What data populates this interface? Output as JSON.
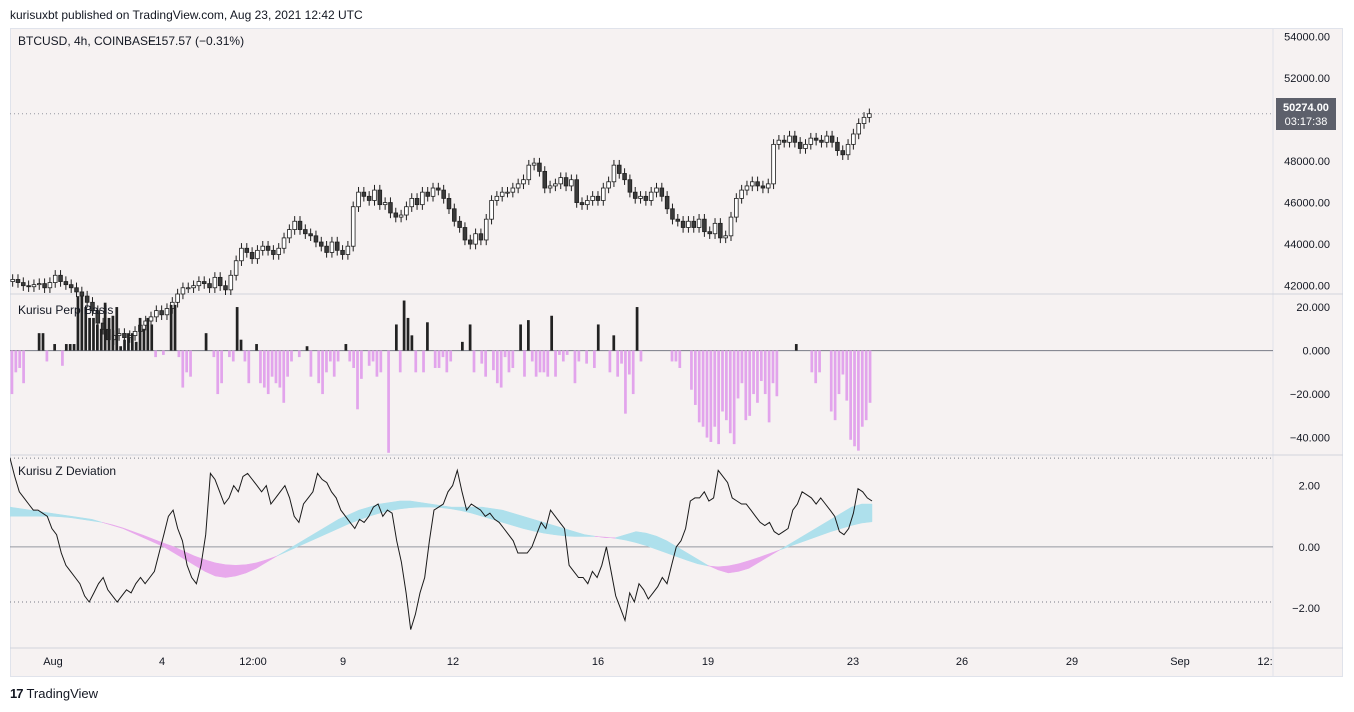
{
  "header": {
    "publish_line": "kurisuxbt published on TradingView.com, Aug 23, 2021 12:42 UTC"
  },
  "footer": {
    "logo_glyph": "17",
    "brand": "TradingView"
  },
  "colors": {
    "background": "#f6f2f2",
    "candle_up_body": "#ffffff",
    "candle_down_body": "#3a3a3a",
    "candle_wick": "#1f1f1f",
    "basis_positive": "#222222",
    "basis_negative": "#e2a4ec",
    "zdev_line": "#1a1a1a",
    "cloud_pink": "#e8a9ec",
    "cloud_blue": "#aee0ec",
    "price_tag_bg": "#5d606b"
  },
  "chart_data": [
    {
      "type": "candlestick",
      "title": "BTCUSD, 4h, COINBASE",
      "change_text": "−157.57 (−0.31%)",
      "y_ticks": [
        "54000.00",
        "52000.00",
        "48000.00",
        "46000.00",
        "44000.00",
        "42000.00"
      ],
      "ylim": [
        41600,
        54400
      ],
      "last_price": "50274.00",
      "countdown": "03:17:38",
      "closes": [
        42300,
        42150,
        42000,
        41950,
        42050,
        42100,
        41900,
        42150,
        42500,
        42200,
        42050,
        41900,
        41700,
        41500,
        41200,
        40800,
        40200,
        39900,
        39400,
        39600,
        39700,
        39500,
        39600,
        39800,
        40100,
        40300,
        40500,
        40800,
        40600,
        40900,
        41200,
        41600,
        41900,
        41900,
        42000,
        42200,
        42100,
        41900,
        42400,
        42000,
        41800,
        42500,
        43200,
        43800,
        43600,
        43300,
        43700,
        43900,
        43700,
        43500,
        43800,
        44300,
        44700,
        45100,
        44700,
        44500,
        44400,
        44100,
        43900,
        43600,
        44100,
        43700,
        43500,
        43900,
        45800,
        46500,
        46300,
        46100,
        46600,
        45900,
        46000,
        45500,
        45300,
        45400,
        45800,
        46200,
        45900,
        46500,
        46300,
        46700,
        46600,
        46200,
        45700,
        45100,
        44800,
        44200,
        44000,
        44500,
        44200,
        45200,
        46100,
        46300,
        46500,
        46500,
        46700,
        46900,
        47100,
        47800,
        47900,
        47500,
        46700,
        46800,
        46900,
        47200,
        46800,
        47100,
        46000,
        45900,
        46100,
        46300,
        46100,
        46700,
        47000,
        47800,
        47400,
        47100,
        46500,
        46200,
        46300,
        46100,
        46500,
        46700,
        46300,
        45700,
        45200,
        45100,
        44800,
        45100,
        44800,
        45200,
        44600,
        44500,
        45000,
        44300,
        44400,
        45300,
        46200,
        46600,
        46800,
        47000,
        46800,
        46700,
        46900,
        48800,
        49000,
        48900,
        49200,
        48900,
        48600,
        48800,
        49100,
        49000,
        48900,
        49200,
        48900,
        48500,
        48300,
        48800,
        49300,
        49800,
        50100,
        50274
      ],
      "ticks": [
        "45200",
        "45400",
        "44800"
      ]
    },
    {
      "type": "bar",
      "title": "Kurisu Perp Basis",
      "y_ticks": [
        "20.000",
        "0.000",
        "−20.000",
        "−40.000"
      ],
      "ylim": [
        -48,
        26
      ],
      "values": [
        -20,
        -10,
        -8,
        -15,
        0,
        0,
        0,
        8,
        8,
        -5,
        0,
        3,
        0,
        -7,
        3,
        3,
        3,
        25,
        25,
        20,
        15,
        15,
        12,
        10,
        22,
        15,
        16,
        20,
        2,
        5,
        8,
        8,
        4,
        15,
        10,
        15,
        12,
        -3,
        0,
        -2,
        0,
        21,
        21,
        -3,
        -17,
        -10,
        -12,
        0,
        0,
        0,
        8,
        0,
        -3,
        -20,
        -15,
        0,
        -3,
        -5,
        20,
        5,
        -5,
        -15,
        0,
        3,
        -15,
        -17,
        -20,
        -12,
        -15,
        -17,
        -24,
        -12,
        -5,
        0,
        -3,
        0,
        2,
        -12,
        0,
        -15,
        -20,
        -10,
        -5,
        -12,
        -5,
        0,
        3,
        -5,
        -8,
        -27,
        -13,
        0,
        -7,
        -5,
        -12,
        -10,
        0,
        -47,
        0,
        12,
        -10,
        23,
        15,
        7,
        -10,
        0,
        -10,
        13,
        0,
        -8,
        -8,
        -3,
        -10,
        -5,
        0,
        0,
        4,
        0,
        12,
        -10,
        0,
        -6,
        -12,
        0,
        -9,
        -15,
        -17,
        -3,
        -10,
        -8,
        0,
        12,
        -12,
        14,
        -5,
        -12,
        -10,
        -10,
        -12,
        16,
        -12,
        -2,
        -5,
        -2,
        0,
        -15,
        -5,
        0,
        -6,
        0,
        -8,
        12,
        0,
        0,
        -10,
        7,
        -12,
        -6,
        -29,
        -11,
        -20,
        20,
        -5,
        0,
        0,
        0,
        0,
        0,
        0,
        0,
        -5,
        -5,
        -8,
        0,
        0,
        -18,
        -25,
        -33,
        -35,
        -40,
        -42,
        -35,
        -43,
        -28,
        -32,
        -38,
        -43,
        -22,
        -15,
        -32,
        -30,
        -20,
        -24,
        -14,
        -20,
        -33,
        -15,
        -21,
        0,
        0,
        0,
        0,
        3,
        0,
        0,
        0,
        -10,
        -15,
        -10,
        0,
        0,
        -28,
        -32,
        -20,
        -11,
        -23,
        -41,
        -44,
        -46,
        -35,
        -32,
        -24
      ],
      "zero_line": true
    },
    {
      "type": "line_with_cloud",
      "title": "Kurisu Z Deviation",
      "y_ticks": [
        "2.00",
        "0.00",
        "−2.00"
      ],
      "ylim": [
        -3.3,
        3.0
      ],
      "upper_band": 2.9,
      "lower_band": -1.8,
      "z_line": [
        2.9,
        2.3,
        1.8,
        1.6,
        1.4,
        1.2,
        1.2,
        1.1,
        1.0,
        0.6,
        0.4,
        -0.2,
        -0.6,
        -0.8,
        -1.0,
        -1.2,
        -1.6,
        -1.8,
        -1.5,
        -1.2,
        -1.0,
        -1.4,
        -1.6,
        -1.8,
        -1.6,
        -1.4,
        -1.5,
        -1.2,
        -1.0,
        -1.2,
        -1.0,
        -0.8,
        -0.2,
        0.4,
        1.0,
        1.2,
        0.6,
        0.2,
        -0.6,
        -1.0,
        -1.2,
        -0.6,
        0.4,
        2.4,
        2.2,
        1.8,
        1.4,
        1.6,
        2.0,
        1.8,
        2.3,
        2.4,
        2.2,
        2.0,
        1.8,
        2.0,
        1.4,
        1.6,
        1.8,
        2.0,
        1.6,
        1.0,
        0.8,
        1.4,
        1.6,
        1.8,
        2.4,
        2.2,
        2.1,
        1.8,
        1.6,
        1.2,
        1.0,
        0.8,
        0.6,
        0.9,
        0.8,
        1.0,
        1.3,
        1.4,
        1.0,
        1.2,
        1.1,
        0.2,
        -0.5,
        -1.5,
        -2.7,
        -2.2,
        -1.5,
        -1.0,
        0.2,
        1.2,
        1.3,
        1.4,
        1.8,
        2.0,
        2.5,
        1.8,
        1.2,
        1.4,
        1.3,
        1.2,
        1.0,
        1.1,
        0.9,
        0.8,
        0.6,
        0.4,
        0.2,
        -0.2,
        -0.2,
        -0.2,
        0.0,
        0.4,
        0.8,
        0.6,
        1.2,
        1.0,
        0.8,
        0.6,
        -0.6,
        -0.8,
        -1.0,
        -1.0,
        -1.2,
        -0.8,
        -1.0,
        -0.6,
        0.0,
        -0.8,
        -1.6,
        -2.0,
        -2.4,
        -1.5,
        -1.8,
        -1.2,
        -1.4,
        -1.7,
        -1.5,
        -1.3,
        -1.0,
        -1.2,
        -0.6,
        0.0,
        0.2,
        0.6,
        1.5,
        1.6,
        1.6,
        1.8,
        1.5,
        1.6,
        2.5,
        2.3,
        2.1,
        1.6,
        1.5,
        1.4,
        1.4,
        1.2,
        1.0,
        0.8,
        0.7,
        0.8,
        0.5,
        0.4,
        0.5,
        0.6,
        1.2,
        1.4,
        1.8,
        1.7,
        1.6,
        1.4,
        1.6,
        1.4,
        1.2,
        1.0,
        0.5,
        0.4,
        0.6,
        1.1,
        1.9,
        1.8,
        1.6,
        1.5
      ],
      "cloud_fast": [
        1.3,
        1.25,
        1.2,
        1.15,
        1.1,
        1.05,
        1.0,
        0.95,
        0.9,
        0.8,
        0.7,
        0.6,
        0.45,
        0.3,
        0.15,
        0.0,
        -0.2,
        -0.4,
        -0.6,
        -0.8,
        -0.95,
        -1.0,
        -0.95,
        -0.85,
        -0.7,
        -0.5,
        -0.3,
        -0.1,
        0.1,
        0.3,
        0.5,
        0.7,
        0.9,
        1.05,
        1.2,
        1.3,
        1.4,
        1.45,
        1.5,
        1.5,
        1.45,
        1.4,
        1.35,
        1.3,
        1.3,
        1.3,
        1.3,
        1.25,
        1.2,
        1.1,
        1.0,
        0.9,
        0.8,
        0.7,
        0.6,
        0.5,
        0.4,
        0.35,
        0.3,
        0.3,
        0.4,
        0.5,
        0.45,
        0.35,
        0.2,
        0.0,
        -0.2,
        -0.4,
        -0.6,
        -0.75,
        -0.85,
        -0.8,
        -0.7,
        -0.5,
        -0.3,
        -0.1,
        0.1,
        0.3,
        0.5,
        0.7,
        0.9,
        1.1,
        1.3,
        1.4,
        1.4
      ],
      "cloud_slow": [
        1.0,
        1.0,
        1.0,
        1.0,
        1.0,
        0.98,
        0.95,
        0.9,
        0.85,
        0.8,
        0.72,
        0.62,
        0.5,
        0.38,
        0.25,
        0.12,
        0.0,
        -0.15,
        -0.3,
        -0.42,
        -0.52,
        -0.58,
        -0.6,
        -0.58,
        -0.52,
        -0.42,
        -0.3,
        -0.15,
        0.0,
        0.15,
        0.3,
        0.45,
        0.6,
        0.75,
        0.88,
        1.0,
        1.1,
        1.18,
        1.24,
        1.28,
        1.3,
        1.3,
        1.28,
        1.24,
        1.18,
        1.1,
        1.0,
        0.9,
        0.8,
        0.7,
        0.6,
        0.52,
        0.45,
        0.4,
        0.36,
        0.34,
        0.34,
        0.34,
        0.32,
        0.28,
        0.22,
        0.14,
        0.04,
        -0.08,
        -0.2,
        -0.32,
        -0.44,
        -0.55,
        -0.62,
        -0.65,
        -0.62,
        -0.55,
        -0.45,
        -0.34,
        -0.22,
        -0.1,
        0.02,
        0.14,
        0.26,
        0.38,
        0.5,
        0.6,
        0.7,
        0.78,
        0.82
      ]
    }
  ],
  "x_axis": {
    "labels": [
      "Aug",
      "4",
      "12:00",
      "9",
      "12",
      "16",
      "19",
      "23",
      "26",
      "29",
      "Sep",
      "12:"
    ]
  }
}
